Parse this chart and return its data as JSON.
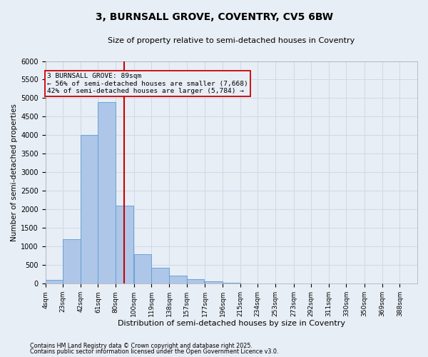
{
  "title": "3, BURNSALL GROVE, COVENTRY, CV5 6BW",
  "subtitle": "Size of property relative to semi-detached houses in Coventry",
  "xlabel": "Distribution of semi-detached houses by size in Coventry",
  "ylabel": "Number of semi-detached properties",
  "footnote1": "Contains HM Land Registry data © Crown copyright and database right 2025.",
  "footnote2": "Contains public sector information licensed under the Open Government Licence v3.0.",
  "property_size": 89,
  "annotation_line1": "3 BURNSALL GROVE: 89sqm",
  "annotation_line2": "← 56% of semi-detached houses are smaller (7,668)",
  "annotation_line3": "42% of semi-detached houses are larger (5,784) →",
  "bin_labels": [
    "4sqm",
    "23sqm",
    "42sqm",
    "61sqm",
    "80sqm",
    "100sqm",
    "119sqm",
    "138sqm",
    "157sqm",
    "177sqm",
    "196sqm",
    "215sqm",
    "234sqm",
    "253sqm",
    "273sqm",
    "292sqm",
    "311sqm",
    "330sqm",
    "350sqm",
    "369sqm",
    "388sqm"
  ],
  "bin_edges": [
    4,
    23,
    42,
    61,
    80,
    100,
    119,
    138,
    157,
    177,
    196,
    215,
    234,
    253,
    273,
    292,
    311,
    330,
    350,
    369,
    388
  ],
  "bar_values": [
    100,
    1200,
    4000,
    4900,
    2100,
    800,
    420,
    220,
    120,
    60,
    30,
    5,
    0,
    0,
    0,
    0,
    0,
    0,
    0,
    0
  ],
  "bar_color": "#aec6e8",
  "bar_edgecolor": "#5b9bd5",
  "grid_color": "#d0d8e8",
  "background_color": "#e8eef5",
  "redline_color": "#cc0000",
  "annotation_box_color": "#cc0000",
  "ylim": [
    0,
    6000
  ],
  "yticks": [
    0,
    500,
    1000,
    1500,
    2000,
    2500,
    3000,
    3500,
    4000,
    4500,
    5000,
    5500,
    6000
  ]
}
